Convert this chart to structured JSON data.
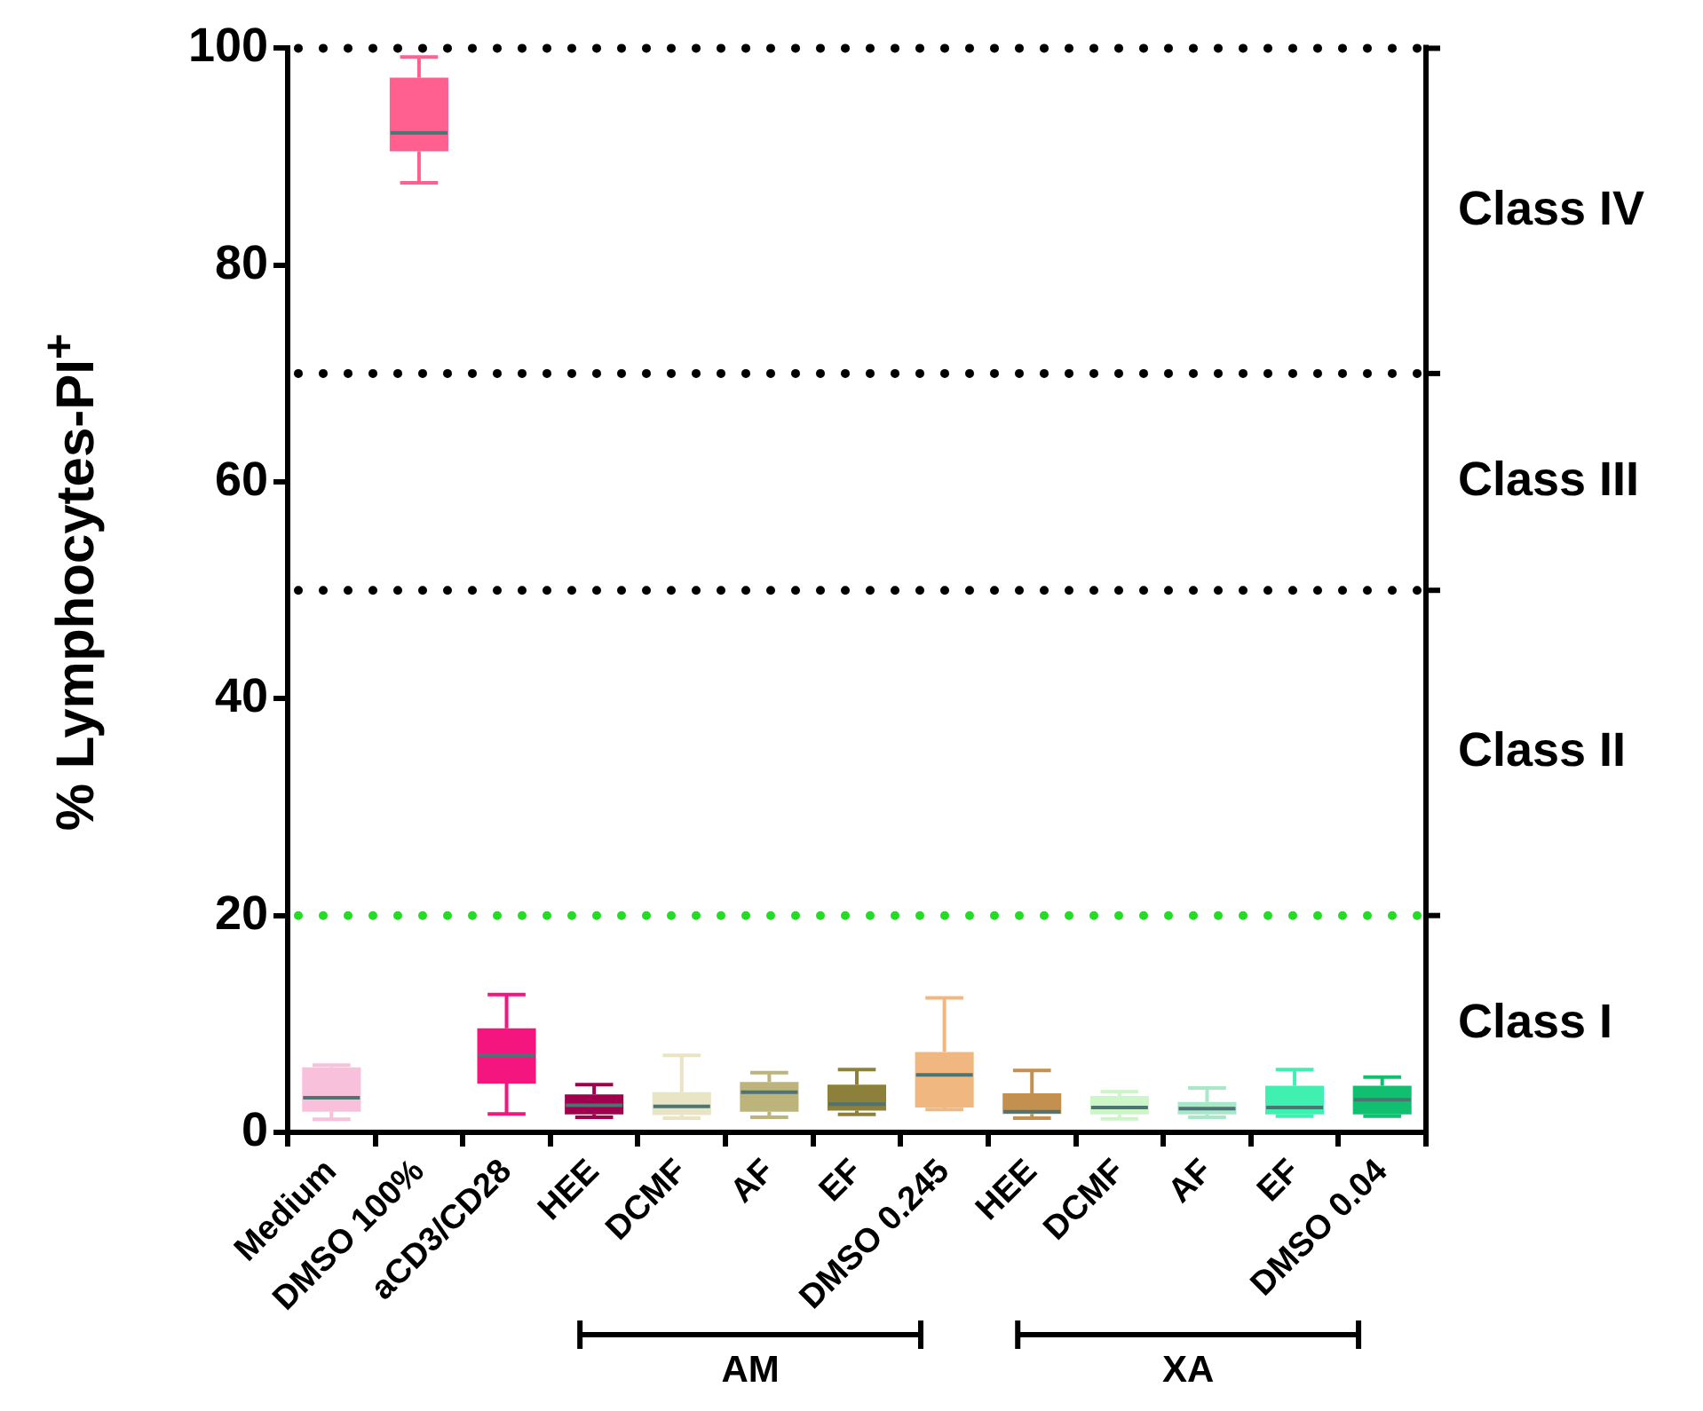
{
  "chart_data": {
    "type": "box",
    "ylabel": "% Lymphocytes-PI$^{+}$",
    "categories": [
      "Medium",
      "DMSO 100%",
      "aCD3/CD28",
      "HEE",
      "DCMF",
      "AF",
      "EF",
      "DMSO 0.245",
      "HEE",
      "DCMF",
      "AF",
      "EF",
      "DMSO 0.04"
    ],
    "boxes": [
      {
        "low": 1.2,
        "q1": 1.9,
        "median": 3.2,
        "q3": 6,
        "high": 6.2
      },
      {
        "low": 87.6,
        "q1": 90.5,
        "median": 92.2,
        "q3": 97.3,
        "high": 99.2
      },
      {
        "low": 1.7,
        "q1": 4.5,
        "median": 7.1,
        "q3": 9.6,
        "high": 12.7
      },
      {
        "low": 1.4,
        "q1": 1.65,
        "median": 2.5,
        "q3": 3.5,
        "high": 4.4
      },
      {
        "low": 1.3,
        "q1": 1.6,
        "median": 2.4,
        "q3": 3.7,
        "high": 7.1
      },
      {
        "low": 1.4,
        "q1": 1.9,
        "median": 3.7,
        "q3": 4.65,
        "high": 5.5
      },
      {
        "low": 1.65,
        "q1": 2,
        "median": 2.6,
        "q3": 4.4,
        "high": 5.8
      },
      {
        "low": 2.1,
        "q1": 2.3,
        "median": 5.3,
        "q3": 7.4,
        "high": 12.4
      },
      {
        "low": 1.3,
        "q1": 1.7,
        "median": 1.9,
        "q3": 3.6,
        "high": 5.7
      },
      {
        "low": 1.25,
        "q1": 1.65,
        "median": 2.3,
        "q3": 3.35,
        "high": 3.75
      },
      {
        "low": 1.4,
        "q1": 1.65,
        "median": 2.2,
        "q3": 2.8,
        "high": 4.1
      },
      {
        "low": 1.5,
        "q1": 1.65,
        "median": 2.3,
        "q3": 4.3,
        "high": 5.8
      },
      {
        "low": 1.5,
        "q1": 1.65,
        "median": 3,
        "q3": 4.3,
        "high": 5.1
      }
    ],
    "colors": [
      "#f9c0dc",
      "#ff6090",
      "#f5157f",
      "#a0004e",
      "#e8e4c4",
      "#bdb47c",
      "#8c803a",
      "#f0b880",
      "#c49050",
      "#ccf5c8",
      "#a8e8c8",
      "#40f0b0",
      "#10c070"
    ],
    "ylim": [
      0,
      100
    ],
    "yticks": [
      0,
      20,
      40,
      60,
      80,
      100
    ],
    "grid": false,
    "legend": false,
    "ref_lines": [
      {
        "axis": "y",
        "value": 20,
        "color": "#22dd22",
        "line_style": "dotted"
      },
      {
        "axis": "y",
        "value": 50,
        "color": "#000000",
        "line_style": "dotted"
      },
      {
        "axis": "y",
        "value": 70,
        "color": "#000000",
        "line_style": "dotted"
      },
      {
        "axis": "y",
        "value": 100,
        "color": "#000000",
        "line_style": "dotted"
      }
    ],
    "annotations": [
      "Class I",
      "Class II",
      "Class III",
      "Class IV",
      "AM",
      "XA"
    ]
  }
}
